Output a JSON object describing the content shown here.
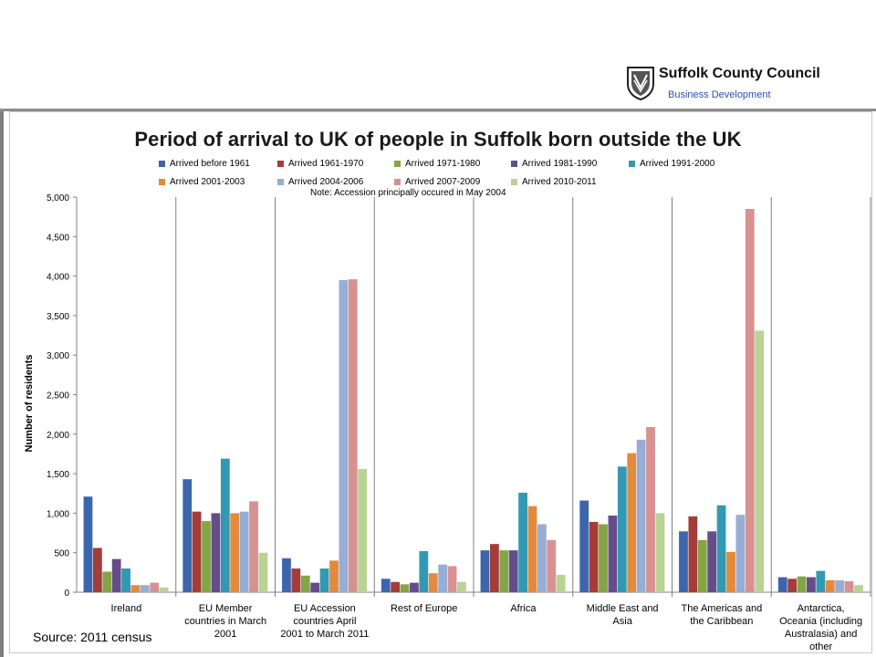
{
  "header": {
    "org_name": "Suffolk County Council",
    "org_sub": "Business Development"
  },
  "footer": {
    "source": "Source: 2011 census"
  },
  "chart_data": {
    "type": "bar",
    "title": "Period of arrival to UK of people in Suffolk born outside the UK",
    "note": "Note: Accession principally occured in May 2004",
    "xlabel": "",
    "ylabel": "Number of residents",
    "ylim": [
      0,
      5000
    ],
    "yticks": [
      0,
      500,
      1000,
      1500,
      2000,
      2500,
      3000,
      3500,
      4000,
      4500,
      5000
    ],
    "ytick_labels": [
      "0",
      "500",
      "1,000",
      "1,500",
      "2,000",
      "2,500",
      "3,000",
      "3,500",
      "4,000",
      "4,500",
      "5,000"
    ],
    "grid": "vertical category separators",
    "legend_position": "top",
    "categories": [
      [
        "Ireland"
      ],
      [
        "EU Member",
        "countries in March",
        "2001"
      ],
      [
        "EU Accession",
        "countries April",
        "2001 to March 2011"
      ],
      [
        "Rest of Europe"
      ],
      [
        "Africa"
      ],
      [
        "Middle East and",
        "Asia"
      ],
      [
        "The Americas and",
        "the Caribbean"
      ],
      [
        "Antarctica,",
        "Oceania (including",
        "Australasia) and",
        "other"
      ]
    ],
    "series": [
      {
        "name": "Arrived before 1961",
        "color": "#3c66ac",
        "values": [
          1210,
          1430,
          430,
          170,
          530,
          1160,
          770,
          190
        ]
      },
      {
        "name": "Arrived 1961-1970",
        "color": "#a43d3a",
        "values": [
          560,
          1020,
          300,
          130,
          610,
          890,
          960,
          170
        ]
      },
      {
        "name": "Arrived 1971-1980",
        "color": "#84a546",
        "values": [
          260,
          900,
          210,
          100,
          530,
          860,
          660,
          200
        ]
      },
      {
        "name": "Arrived 1981-1990",
        "color": "#654d8b",
        "values": [
          420,
          1000,
          120,
          120,
          530,
          970,
          770,
          190
        ]
      },
      {
        "name": "Arrived 1991-2000",
        "color": "#3399b3",
        "values": [
          300,
          1690,
          300,
          520,
          1260,
          1590,
          1100,
          270
        ]
      },
      {
        "name": "Arrived 2001-2003",
        "color": "#e28a3e",
        "values": [
          90,
          1000,
          400,
          240,
          1090,
          1760,
          510,
          150
        ]
      },
      {
        "name": "Arrived 2004-2006",
        "color": "#97add6",
        "values": [
          90,
          1020,
          3950,
          350,
          860,
          1930,
          980,
          150
        ]
      },
      {
        "name": "Arrived 2007-2009",
        "color": "#d89191",
        "values": [
          120,
          1150,
          3960,
          330,
          660,
          2090,
          4850,
          140
        ]
      },
      {
        "name": "Arrived 2010-2011",
        "color": "#b8d393",
        "values": [
          60,
          500,
          1560,
          130,
          220,
          1000,
          3310,
          90
        ]
      }
    ]
  }
}
